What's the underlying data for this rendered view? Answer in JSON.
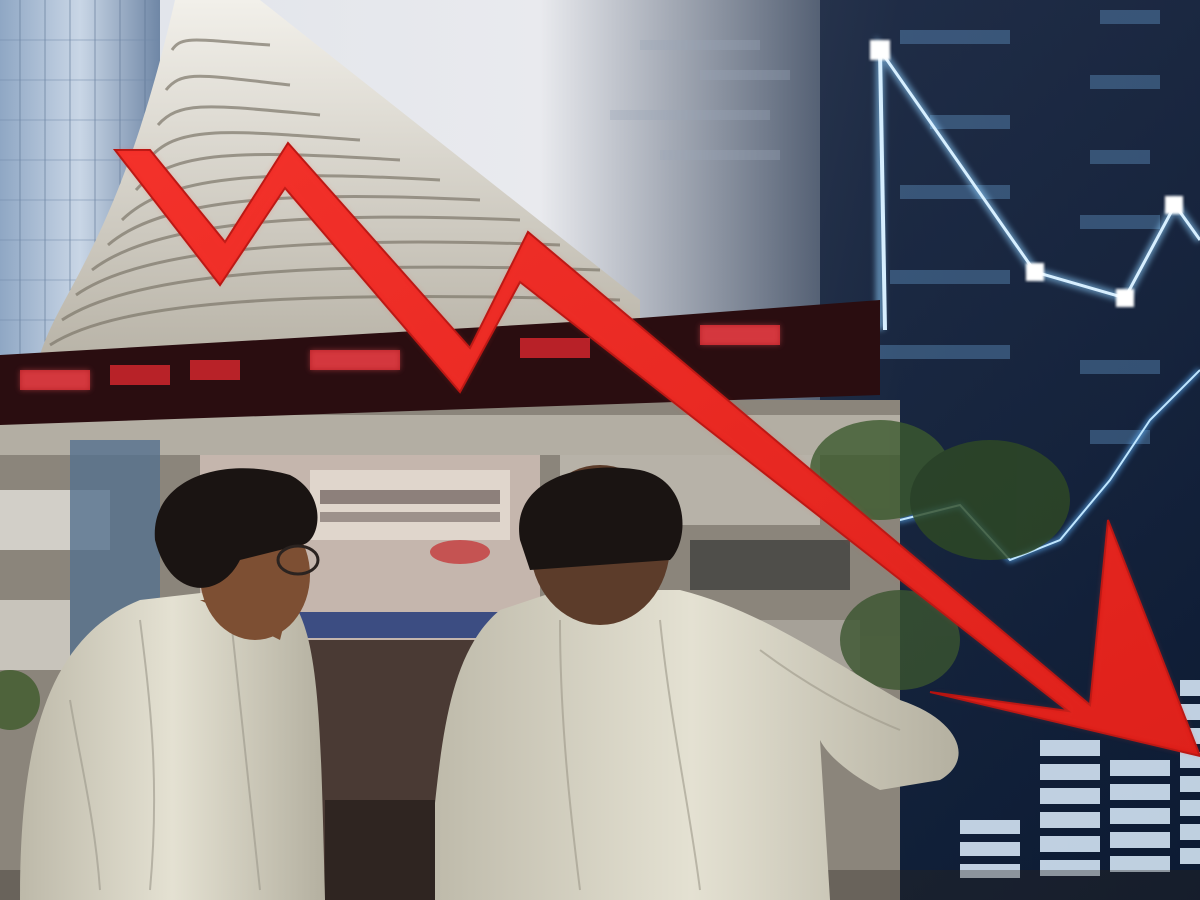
{
  "scene": {
    "subject": "stock-market-decline-composite",
    "elements": [
      "exchange-building",
      "led-ticker-band",
      "stock-chart-overlay",
      "falling-red-arrow",
      "two-men-viewers"
    ],
    "icons": [
      "arrow-down-trend-icon"
    ],
    "colors": {
      "arrow": "#e8201c",
      "arrow_dark": "#b3120f",
      "chart_glow": "#8fd0ff",
      "chart_bg": "#14253f",
      "ticker_bg": "#2a0d10",
      "ticker_led": "#d1262d",
      "sky": "#e6e8ec",
      "shirt": "#d9d6c6",
      "hair": "#1a1412",
      "skin": "#8a5a3c"
    }
  }
}
